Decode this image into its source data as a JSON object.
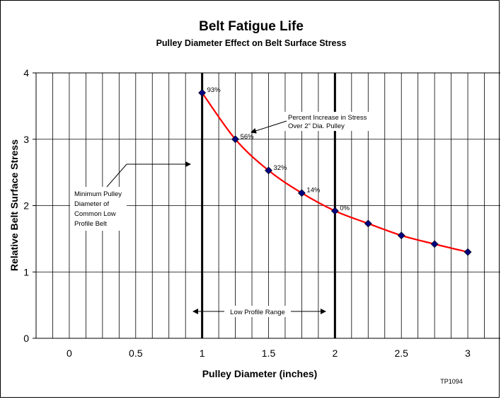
{
  "chart_data": {
    "type": "line",
    "title": "Belt Fatigue Life",
    "subtitle": "Pulley Diameter Effect on Belt Surface Stress",
    "xlabel": "Pulley Diameter (inches)",
    "ylabel": "Relative Belt Surface Stress",
    "xlim": [
      -0.25,
      3.25
    ],
    "ylim": [
      0,
      4
    ],
    "x_ticks": [
      {
        "value": 0,
        "label": "0"
      },
      {
        "value": 0.5,
        "label": "0.5"
      },
      {
        "value": 1,
        "label": "1"
      },
      {
        "value": 1.5,
        "label": "1.5"
      },
      {
        "value": 2,
        "label": "2"
      },
      {
        "value": 2.5,
        "label": "2.5"
      },
      {
        "value": 3,
        "label": "3"
      }
    ],
    "y_ticks": [
      {
        "value": 0,
        "label": "0"
      },
      {
        "value": 1,
        "label": "1"
      },
      {
        "value": 2,
        "label": "2"
      },
      {
        "value": 3,
        "label": "3"
      },
      {
        "value": 4,
        "label": "4"
      }
    ],
    "grid": true,
    "series": [
      {
        "color": "#ff0000",
        "marker_color": "#000080",
        "points": [
          {
            "x": 1.0,
            "y": 3.7,
            "label": "93%"
          },
          {
            "x": 1.25,
            "y": 3.0,
            "label": "56%"
          },
          {
            "x": 1.5,
            "y": 2.53,
            "label": "32%"
          },
          {
            "x": 1.75,
            "y": 2.19,
            "label": "14%"
          },
          {
            "x": 2.0,
            "y": 1.92,
            "label": "0%"
          },
          {
            "x": 2.25,
            "y": 1.73,
            "label": ""
          },
          {
            "x": 2.5,
            "y": 1.55,
            "label": ""
          },
          {
            "x": 2.75,
            "y": 1.42,
            "label": ""
          },
          {
            "x": 3.0,
            "y": 1.3,
            "label": ""
          }
        ]
      }
    ],
    "reference_lines": [
      {
        "x": 1.0
      },
      {
        "x": 2.0
      }
    ],
    "annotations": {
      "stress_increase": [
        "Percent Increase in Stress",
        "Over 2\" Dia. Pulley"
      ],
      "min_pulley": [
        "Minimum Pulley",
        "Diameter of",
        "Common Low",
        "Profile Belt"
      ],
      "range": "Low Profile Range"
    },
    "code": "TP1094"
  }
}
